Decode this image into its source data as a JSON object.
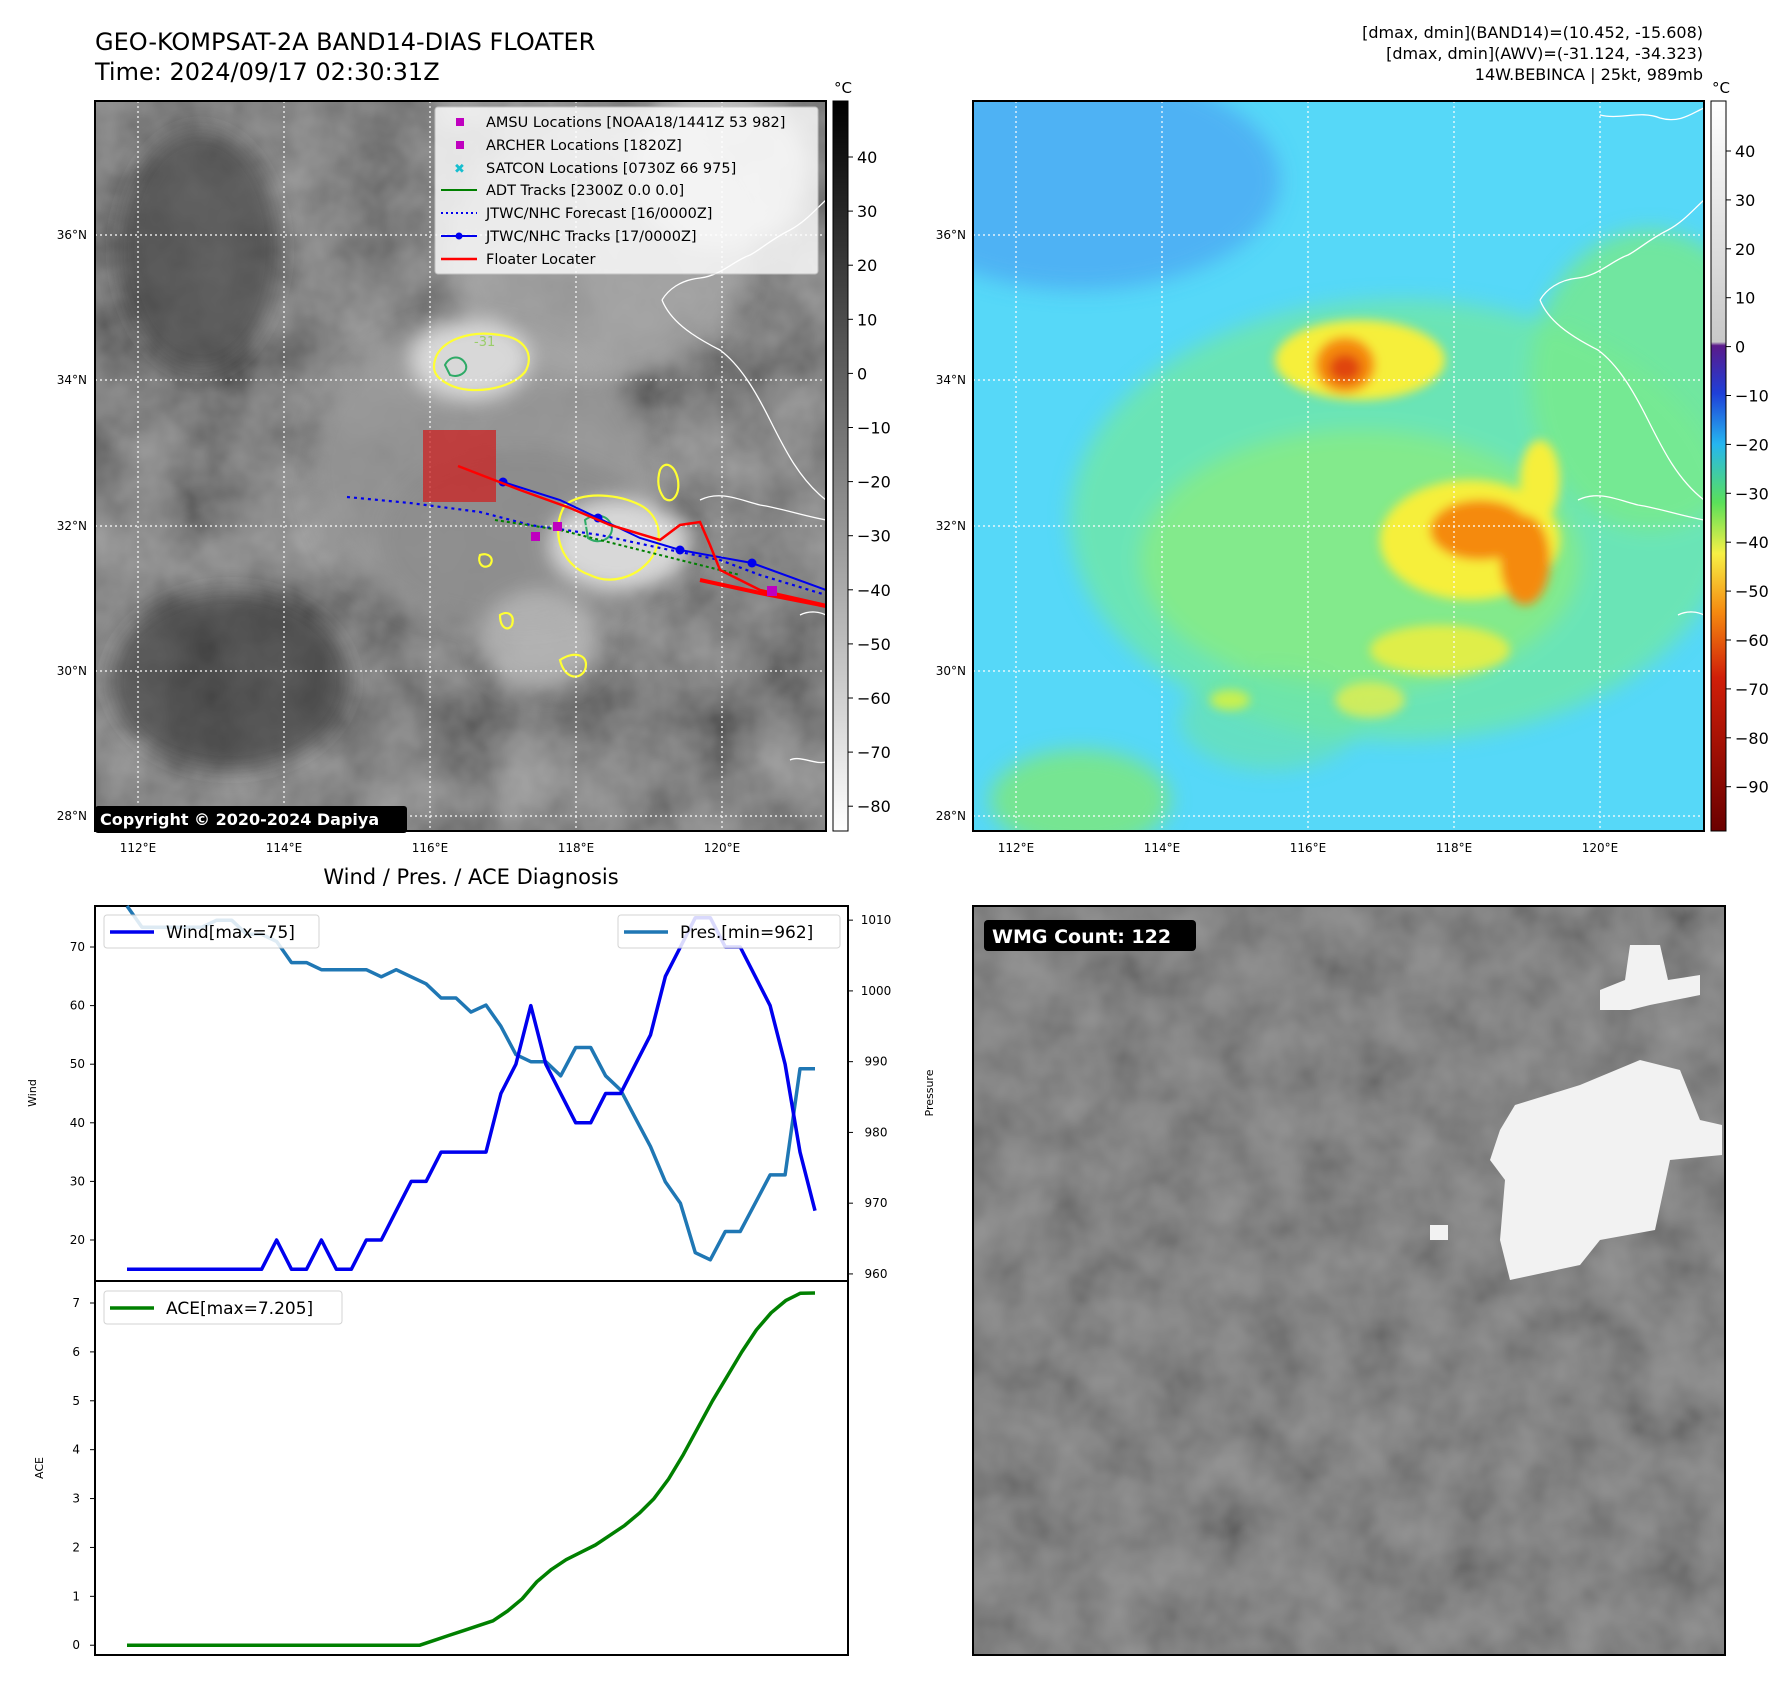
{
  "header": {
    "title_line1": "GEO-KOMPSAT-2A BAND14-DIAS FLOATER",
    "title_line2": "Time: 2024/09/17 02:30:31Z",
    "info_line1": "[dmax, dmin](BAND14)=(10.452, -15.608)",
    "info_line2": "[dmax, dmin](AWV)=(-31.124, -34.323)",
    "info_line3": "14W.BEBINCA | 25kt, 989mb"
  },
  "map_axes": {
    "lon_labels": [
      "112°E",
      "114°E",
      "116°E",
      "118°E",
      "120°E"
    ],
    "lat_labels": [
      "36°N",
      "34°N",
      "32°N",
      "30°N",
      "28°N"
    ]
  },
  "ir_colorbar": {
    "unit": "°C",
    "ticks": [
      "40",
      "30",
      "20",
      "10",
      "0",
      "−10",
      "−20",
      "−30",
      "−40",
      "−50",
      "−60",
      "−70",
      "−80"
    ]
  },
  "awv_colorbar": {
    "unit": "°C",
    "ticks": [
      "40",
      "30",
      "20",
      "10",
      "0",
      "−10",
      "−20",
      "−30",
      "−40",
      "−50",
      "−60",
      "−70",
      "−80",
      "−90"
    ]
  },
  "legend": {
    "amsu": "AMSU Locations [NOAA18/1441Z 53 982]",
    "archer": "ARCHER Locations [1820Z]",
    "satcon": "SATCON Locations [0730Z 66 975]",
    "adt": "ADT Tracks [2300Z 0.0 0.0]",
    "forecast": "JTWC/NHC Forecast [16/0000Z]",
    "tracks": "JTWC/NHC Tracks [17/0000Z]",
    "floater": "Floater Locater"
  },
  "contour_label": "-31",
  "copyright": "Copyright © 2020-2024 Dapiya",
  "wmg_label": "WMG Count: 122",
  "colors": {
    "wind": "#0000ee",
    "pressure": "#1f77b4",
    "ace": "#008000",
    "floater": "#ff0000",
    "contour": "#ffff33",
    "amsu": "#bf00bf",
    "satcon": "#17becf"
  },
  "chart_data": [
    {
      "type": "line",
      "title": "Wind / Pres. / ACE Diagnosis",
      "ylabel": "Wind",
      "ylabel_right": "Pressure",
      "ylim": [
        13,
        77
      ],
      "ylim_right": [
        959,
        1012
      ],
      "yticks": [
        "70",
        "60",
        "50",
        "40",
        "30",
        "20"
      ],
      "yticks_right": [
        "1010",
        "1000",
        "990",
        "980",
        "970",
        "960"
      ],
      "series": [
        {
          "name": "Wind[max=75]",
          "values": [
            15,
            15,
            15,
            15,
            15,
            15,
            15,
            15,
            15,
            15,
            20,
            15,
            15,
            20,
            15,
            15,
            20,
            20,
            25,
            30,
            30,
            35,
            35,
            35,
            35,
            45,
            50,
            60,
            50,
            45,
            40,
            40,
            45,
            45,
            50,
            55,
            65,
            70,
            75,
            75,
            70,
            70,
            65,
            60,
            50,
            35,
            25
          ]
        },
        {
          "name": "Pres.[min=962]",
          "axis": "right",
          "values": [
            1012,
            1009,
            1009,
            1009,
            1009,
            1009,
            1010,
            1010,
            1008,
            1008,
            1007,
            1004,
            1004,
            1003,
            1003,
            1003,
            1003,
            1002,
            1003,
            1002,
            1001,
            999,
            999,
            997,
            998,
            995,
            991,
            990,
            990,
            988,
            992,
            992,
            988,
            986,
            982,
            978,
            973,
            970,
            963,
            962,
            966,
            966,
            970,
            974,
            974,
            989,
            989
          ]
        }
      ]
    },
    {
      "type": "line",
      "ylabel": "ACE",
      "ylim": [
        -0.2,
        7.45
      ],
      "yticks": [
        "7",
        "6",
        "5",
        "4",
        "3",
        "2",
        "1",
        "0"
      ],
      "series": [
        {
          "name": "ACE[max=7.205]",
          "values": [
            0,
            0,
            0,
            0,
            0,
            0,
            0,
            0,
            0,
            0,
            0,
            0,
            0,
            0,
            0,
            0,
            0,
            0,
            0,
            0,
            0,
            0.1,
            0.2,
            0.3,
            0.4,
            0.5,
            0.7,
            0.95,
            1.3,
            1.55,
            1.75,
            1.9,
            2.05,
            2.25,
            2.45,
            2.7,
            3.0,
            3.4,
            3.9,
            4.45,
            5.0,
            5.5,
            6.0,
            6.45,
            6.8,
            7.05,
            7.2,
            7.205
          ]
        }
      ]
    }
  ]
}
